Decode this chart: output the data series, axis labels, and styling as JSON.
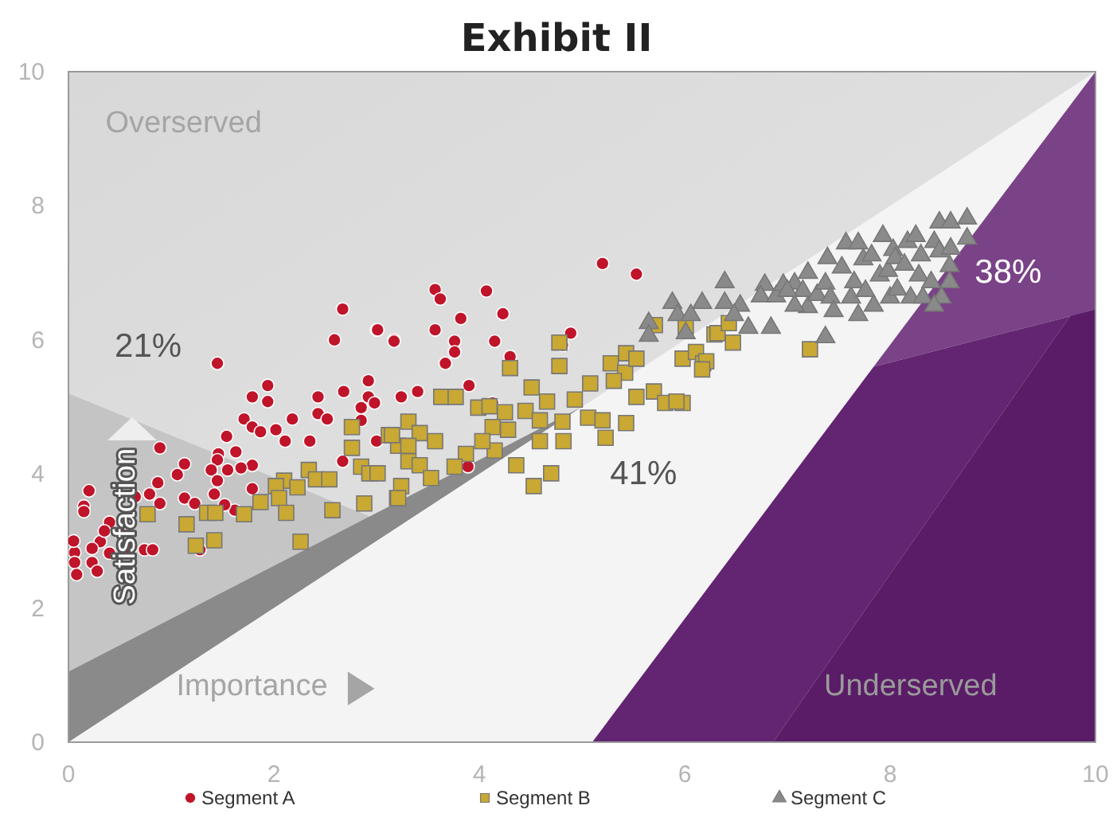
{
  "chart_data": {
    "type": "scatter",
    "title": "Exhibit II",
    "xlabel": "Importance",
    "ylabel": "Satisfaction",
    "xlim": [
      0,
      10
    ],
    "ylim": [
      0,
      10
    ],
    "xticks": [
      0,
      2,
      4,
      6,
      8,
      10
    ],
    "yticks": [
      0,
      2,
      4,
      6,
      8,
      10
    ],
    "grid": false,
    "legend": "bottom",
    "annotations": [
      "Overserved",
      "21%",
      "41%",
      "38%",
      "Underserved"
    ],
    "series": [
      {
        "name": "Segment A",
        "color": "#c0142a",
        "marker": "circle",
        "x": [
          2.67,
          2.59,
          3.0,
          3.17,
          1.45,
          1.94,
          1.79,
          1.94,
          2.92,
          2.68,
          2.43,
          2.92,
          3.24,
          2.85,
          1.71,
          2.18,
          2.43,
          2.52,
          1.79,
          2.02,
          1.54,
          1.87,
          2.11,
          2.35,
          3.0,
          0.89,
          1.46,
          1.63,
          1.45,
          1.13,
          1.79,
          1.39,
          1.55,
          1.68,
          1.06,
          2.67,
          0.87,
          1.45,
          1.13,
          1.23,
          1.42,
          1.62,
          1.79,
          0.79,
          0.89,
          0.65,
          0.15,
          0.15,
          0.4,
          0.51,
          0.31,
          0.23,
          0.06,
          0.4,
          0.6,
          0.74,
          0.82,
          0.06,
          0.23,
          1.28,
          1.52,
          0.08,
          0.28,
          0.05,
          0.35,
          0.2,
          5.2,
          5.53,
          3.57,
          3.62,
          4.07,
          3.01,
          3.17,
          3.57,
          3.82,
          4.23,
          3.76,
          3.76,
          4.15,
          3.67,
          4.89,
          4.81,
          4.3,
          3.4,
          3.9,
          2.98,
          2.85,
          4.13,
          3.89
        ],
        "values": [
          6.46,
          6.0,
          6.15,
          6.0,
          5.65,
          5.32,
          5.15,
          5.08,
          5.39,
          5.23,
          5.15,
          5.15,
          5.15,
          4.99,
          4.82,
          4.82,
          4.9,
          4.82,
          4.7,
          4.66,
          4.56,
          4.63,
          4.49,
          4.49,
          4.49,
          4.39,
          4.3,
          4.33,
          4.21,
          4.15,
          4.13,
          4.06,
          4.06,
          4.09,
          3.99,
          4.19,
          3.87,
          3.9,
          3.64,
          3.56,
          3.7,
          3.46,
          3.78,
          3.7,
          3.56,
          3.66,
          3.52,
          3.44,
          3.28,
          3.11,
          2.99,
          2.89,
          2.83,
          2.82,
          2.88,
          2.87,
          2.87,
          2.68,
          2.68,
          2.87,
          3.54,
          2.5,
          2.55,
          3.0,
          3.15,
          3.75,
          7.14,
          6.98,
          6.75,
          6.61,
          6.73,
          6.15,
          5.98,
          6.15,
          6.32,
          6.39,
          5.98,
          5.82,
          5.98,
          5.65,
          6.1,
          5.92,
          5.75,
          5.23,
          5.32,
          5.06,
          4.8,
          5.06,
          4.11
        ]
      },
      {
        "name": "Segment B",
        "color": "#c9a833",
        "marker": "square",
        "x": [
          2.76,
          2.76,
          3.12,
          3.31,
          3.21,
          3.31,
          2.85,
          2.93,
          3.01,
          3.24,
          3.2,
          2.88,
          2.57,
          2.34,
          2.41,
          2.54,
          2.1,
          2.23,
          2.02,
          2.05,
          1.87,
          2.12,
          1.71,
          1.35,
          1.43,
          0.77,
          1.15,
          1.42,
          1.24,
          2.26,
          4.78,
          4.78,
          4.3,
          4.51,
          3.63,
          3.77,
          3.99,
          4.1,
          4.25,
          4.45,
          4.66,
          4.59,
          4.81,
          4.93,
          5.08,
          5.06,
          5.2,
          5.28,
          5.42,
          5.43,
          5.53,
          5.31,
          5.53,
          5.7,
          5.81,
          5.98,
          5.43,
          5.23,
          4.82,
          4.59,
          4.36,
          4.15,
          4.28,
          4.13,
          4.03,
          3.87,
          3.57,
          3.42,
          3.15,
          3.31,
          3.42,
          3.53,
          3.76,
          3.21,
          4.7,
          4.53,
          5.71,
          5.98,
          6.11,
          6.18,
          6.29,
          6.01,
          6.32,
          6.43,
          6.47,
          6.21,
          6.17,
          7.22,
          5.92
        ],
        "values": [
          4.7,
          4.39,
          4.58,
          4.78,
          4.42,
          4.19,
          4.11,
          4.01,
          4.01,
          3.82,
          3.64,
          3.56,
          3.46,
          4.06,
          3.92,
          3.92,
          3.9,
          3.8,
          3.82,
          3.64,
          3.58,
          3.42,
          3.4,
          3.42,
          3.42,
          3.4,
          3.25,
          3.01,
          2.93,
          2.99,
          5.96,
          5.61,
          5.58,
          5.29,
          5.15,
          5.15,
          4.99,
          5.01,
          4.92,
          4.94,
          5.08,
          4.8,
          4.78,
          5.11,
          5.35,
          4.84,
          4.8,
          5.65,
          5.51,
          5.8,
          5.72,
          5.39,
          5.15,
          5.23,
          5.06,
          5.06,
          4.76,
          4.54,
          4.49,
          4.49,
          4.13,
          4.35,
          4.66,
          4.7,
          4.49,
          4.3,
          4.49,
          4.61,
          4.58,
          4.42,
          4.13,
          3.94,
          4.11,
          3.64,
          4.01,
          3.82,
          6.22,
          5.72,
          5.82,
          5.65,
          6.08,
          6.2,
          6.1,
          6.25,
          5.96,
          5.68,
          5.56,
          5.86,
          5.08
        ]
      },
      {
        "name": "Segment C",
        "color": "#8a8a8a",
        "marker": "triangle",
        "x": [
          6.39,
          5.88,
          6.17,
          5.93,
          6.06,
          6.39,
          6.54,
          6.01,
          6.62,
          6.84,
          6.78,
          6.74,
          6.89,
          6.96,
          7.07,
          7.2,
          7.15,
          7.2,
          7.29,
          7.37,
          7.39,
          7.42,
          7.45,
          7.53,
          7.57,
          7.62,
          7.65,
          7.69,
          7.69,
          7.74,
          7.76,
          7.82,
          7.84,
          7.9,
          7.93,
          7.98,
          8.0,
          8.03,
          8.05,
          8.07,
          8.14,
          8.17,
          8.2,
          8.25,
          8.28,
          8.3,
          8.32,
          8.4,
          8.43,
          8.48,
          8.48,
          8.5,
          8.43,
          8.58,
          8.58,
          8.59,
          8.75,
          8.75,
          8.59,
          7.37,
          7.07,
          6.48,
          7.0,
          5.65,
          5.65
        ],
        "values": [
          6.86,
          6.55,
          6.55,
          6.37,
          6.37,
          6.55,
          6.51,
          6.1,
          6.18,
          6.18,
          6.82,
          6.65,
          6.65,
          6.82,
          6.84,
          7.0,
          6.73,
          6.49,
          6.67,
          6.84,
          7.22,
          6.63,
          6.43,
          7.08,
          7.44,
          6.63,
          6.86,
          6.37,
          7.44,
          7.2,
          6.73,
          7.26,
          6.51,
          6.96,
          7.55,
          7.03,
          6.63,
          7.34,
          7.22,
          6.75,
          7.12,
          7.46,
          6.63,
          7.55,
          6.96,
          7.26,
          6.63,
          6.86,
          7.46,
          7.75,
          7.32,
          6.63,
          6.51,
          7.1,
          6.86,
          7.75,
          7.81,
          7.51,
          7.36,
          6.04,
          6.51,
          6.37,
          6.73,
          6.25,
          6.06
        ]
      }
    ]
  }
}
